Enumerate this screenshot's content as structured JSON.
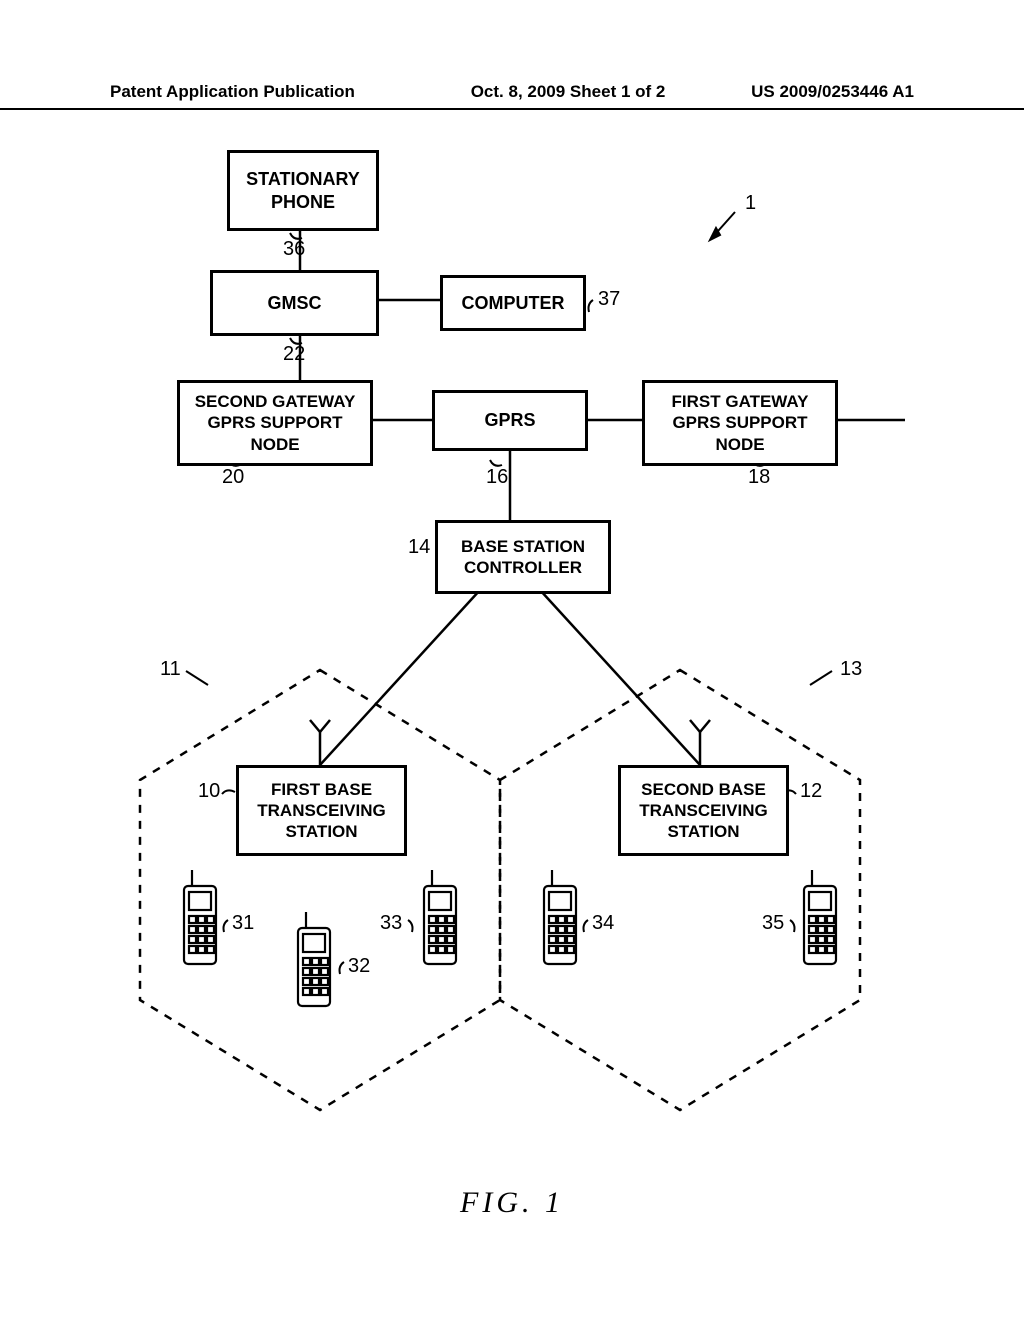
{
  "header": {
    "left": "Patent Application Publication",
    "center": "Oct. 8, 2009  Sheet 1 of 2",
    "right": "US 2009/0253446 A1"
  },
  "boxes": {
    "stationary_phone": "STATIONARY\nPHONE",
    "gmsc": "GMSC",
    "computer": "COMPUTER",
    "ggsn2": "SECOND GATEWAY\nGPRS SUPPORT\nNODE",
    "gprs": "GPRS",
    "ggsn1": "FIRST GATEWAY\nGPRS SUPPORT\nNODE",
    "bsc": "BASE STATION\nCONTROLLER",
    "bts1": "FIRST BASE\nTRANSCEIVING\nSTATION",
    "bts2": "SECOND BASE\nTRANSCEIVING\nSTATION"
  },
  "refs": {
    "r1": "1",
    "r36": "36",
    "r37": "37",
    "r22": "22",
    "r20": "20",
    "r16": "16",
    "r18": "18",
    "r14": "14",
    "r11": "11",
    "r13": "13",
    "r10": "10",
    "r12": "12",
    "r31": "31",
    "r32": "32",
    "r33": "33",
    "r34": "34",
    "r35": "35"
  },
  "figure_caption": "FIG.  1",
  "colors": {
    "line": "#000000",
    "bg": "#ffffff"
  },
  "layout": {
    "box_stroke": 3,
    "line_stroke": 2.5,
    "dash": "8 8"
  }
}
